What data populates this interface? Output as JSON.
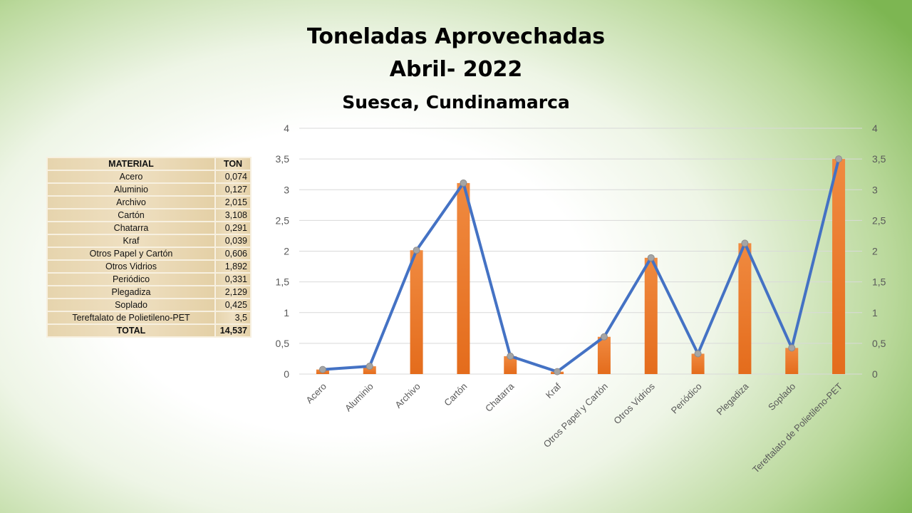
{
  "chart_data": {
    "type": "bar",
    "title": "Toneladas Aprovechadas",
    "subtitle": "Abril- 2022",
    "location": "Suesca, Cundinamarca",
    "categories": [
      "Acero",
      "Aluminio",
      "Archivo",
      "Cartón",
      "Chatarra",
      "Kraf",
      "Otros Papel y Cartón",
      "Otros Vidrios",
      "Periódico",
      "Plegadiza",
      "Soplado",
      "Tereftalato de Polietileno-PET"
    ],
    "series": [
      {
        "name": "TON (barras)",
        "kind": "bar",
        "color": "#ed7d31",
        "values": [
          0.074,
          0.127,
          2.015,
          3.108,
          0.291,
          0.039,
          0.606,
          1.892,
          0.331,
          2.129,
          0.425,
          3.5
        ]
      },
      {
        "name": "TON (línea)",
        "kind": "line",
        "color": "#4472c4",
        "values": [
          0.074,
          0.127,
          2.015,
          3.108,
          0.291,
          0.039,
          0.606,
          1.892,
          0.331,
          2.129,
          0.425,
          3.5
        ]
      }
    ],
    "ylim": [
      0,
      4
    ],
    "yticks": [
      "0",
      "0,5",
      "1",
      "1,5",
      "2",
      "2,5",
      "3",
      "3,5",
      "4"
    ],
    "grid": true,
    "secondary_axis": true
  },
  "table": {
    "headers": [
      "MATERIAL",
      "TON"
    ],
    "rows": [
      [
        "Acero",
        "0,074"
      ],
      [
        "Aluminio",
        "0,127"
      ],
      [
        "Archivo",
        "2,015"
      ],
      [
        "Cartón",
        "3,108"
      ],
      [
        "Chatarra",
        "0,291"
      ],
      [
        "Kraf",
        "0,039"
      ],
      [
        "Otros Papel y Cartón",
        "0,606"
      ],
      [
        "Otros Vidrios",
        "1,892"
      ],
      [
        "Periódico",
        "0,331"
      ],
      [
        "Plegadiza",
        "2,129"
      ],
      [
        "Soplado",
        "0,425"
      ],
      [
        "Tereftalato de Polietileno-PET",
        "3,5"
      ]
    ],
    "total": [
      "TOTAL",
      "14,537"
    ]
  }
}
